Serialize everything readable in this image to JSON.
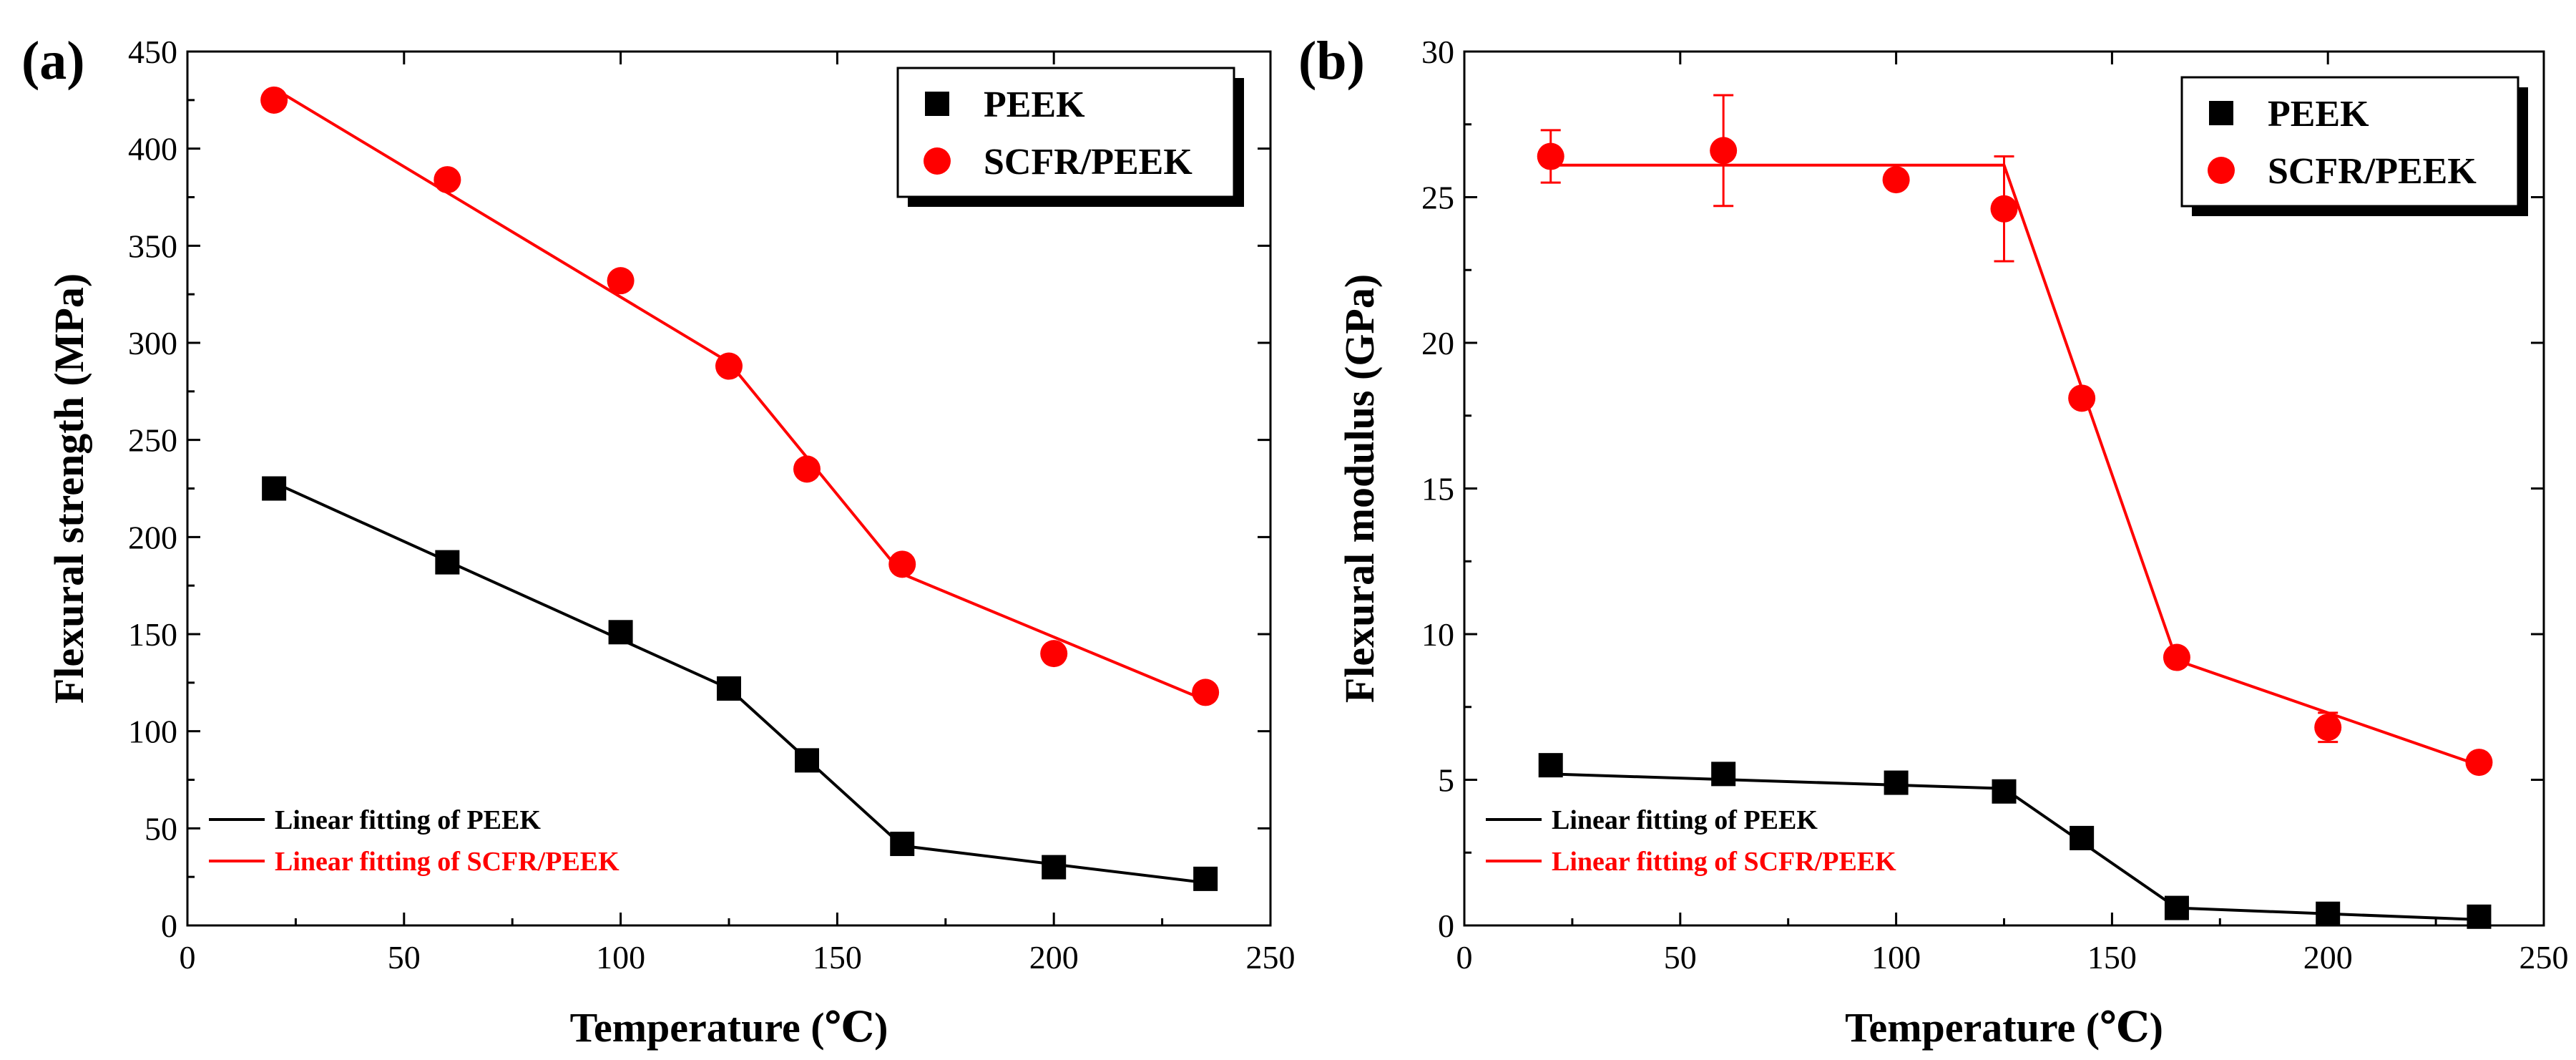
{
  "chart_data": [
    {
      "panel_label": "(a)",
      "type": "line",
      "xlabel": "Temperature (℃)",
      "ylabel": "Flexural strength (MPa)",
      "xlim": [
        0,
        250
      ],
      "ylim": [
        0,
        450
      ],
      "xticks": [
        0,
        50,
        100,
        150,
        200,
        250
      ],
      "yticks": [
        0,
        50,
        100,
        150,
        200,
        250,
        300,
        350,
        400,
        450
      ],
      "grid": false,
      "legend_position": "top-right",
      "fit_legend_position": "bottom-left",
      "series": [
        {
          "name": "PEEK",
          "marker": "square",
          "color": "#000000",
          "x": [
            20,
            60,
            100,
            125,
            143,
            165,
            200,
            235
          ],
          "y": [
            225,
            187,
            151,
            122,
            85,
            42,
            30,
            24
          ],
          "yerr": [
            0,
            0,
            0,
            0,
            0,
            0,
            0,
            0
          ]
        },
        {
          "name": "SCFR/PEEK",
          "marker": "circle",
          "color": "#ff0000",
          "x": [
            20,
            60,
            100,
            125,
            143,
            165,
            200,
            235
          ],
          "y": [
            425,
            384,
            332,
            288,
            235,
            186,
            140,
            120
          ],
          "yerr": [
            0,
            0,
            0,
            0,
            0,
            0,
            0,
            0
          ]
        }
      ],
      "fits": [
        {
          "name": "Linear fitting of PEEK",
          "color": "#000000",
          "x": [
            20,
            125,
            165,
            235
          ],
          "y": [
            228,
            122,
            41,
            22
          ]
        },
        {
          "name": "Linear fitting of SCFR/PEEK",
          "color": "#ff0000",
          "x": [
            20,
            125,
            165,
            235
          ],
          "y": [
            431,
            290,
            181,
            116
          ]
        }
      ]
    },
    {
      "panel_label": "(b)",
      "type": "line",
      "xlabel": "Temperature (℃)",
      "ylabel": "Flexural modulus (GPa)",
      "xlim": [
        0,
        250
      ],
      "ylim": [
        0,
        30
      ],
      "xticks": [
        0,
        50,
        100,
        150,
        200,
        250
      ],
      "yticks": [
        0,
        5,
        10,
        15,
        20,
        25,
        30
      ],
      "grid": false,
      "legend_position": "top-right",
      "fit_legend_position": "bottom-left",
      "series": [
        {
          "name": "PEEK",
          "marker": "square",
          "color": "#000000",
          "x": [
            20,
            60,
            100,
            125,
            143,
            165,
            200,
            235
          ],
          "y": [
            5.5,
            5.2,
            4.9,
            4.6,
            3.0,
            0.6,
            0.4,
            0.3
          ],
          "yerr": [
            0,
            0,
            0,
            0,
            0,
            0,
            0,
            0
          ]
        },
        {
          "name": "SCFR/PEEK",
          "marker": "circle",
          "color": "#ff0000",
          "x": [
            20,
            60,
            100,
            125,
            143,
            165,
            200,
            235
          ],
          "y": [
            26.4,
            26.6,
            25.6,
            24.6,
            18.1,
            9.2,
            6.8,
            5.6
          ],
          "yerr": [
            0.9,
            1.9,
            0,
            1.8,
            0,
            0,
            0.5,
            0
          ]
        }
      ],
      "fits": [
        {
          "name": "Linear fitting of PEEK",
          "color": "#000000",
          "x": [
            20,
            125,
            165,
            235
          ],
          "y": [
            5.2,
            4.7,
            0.6,
            0.2
          ]
        },
        {
          "name": "Linear fitting of SCFR/PEEK",
          "color": "#ff0000",
          "x": [
            20,
            125,
            165,
            235
          ],
          "y": [
            26.1,
            26.1,
            9.1,
            5.5
          ]
        }
      ]
    }
  ]
}
